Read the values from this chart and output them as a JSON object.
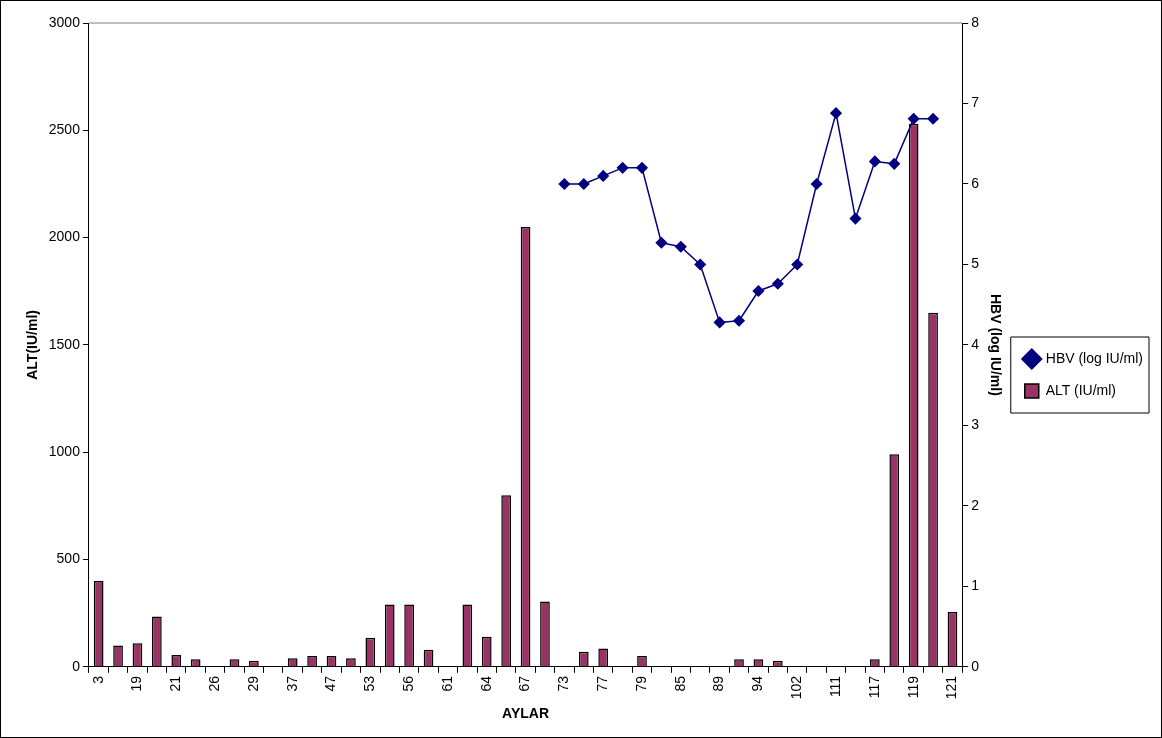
{
  "chart_data": {
    "type": "bar",
    "xlabel": "AYLAR",
    "ylabel": "ALT(IU/ml)",
    "y2label": "HBV (log IU/ml)",
    "categories": [
      "3",
      null,
      "19",
      null,
      "21",
      null,
      "26",
      null,
      "29",
      null,
      "37",
      null,
      "47",
      null,
      "53",
      null,
      "56",
      null,
      "61",
      null,
      "64",
      null,
      "67",
      null,
      "73",
      null,
      "77",
      null,
      "79",
      null,
      "85",
      null,
      "89",
      null,
      "94",
      null,
      "102",
      null,
      "111",
      null,
      "117",
      null,
      "119",
      null,
      "121"
    ],
    "series": [
      {
        "name": "ALT (IU/ml)",
        "color": "#993366",
        "values": [
          400,
          100,
          110,
          235,
          55,
          35,
          null,
          35,
          28,
          null,
          40,
          50,
          50,
          40,
          135,
          290,
          290,
          80,
          null,
          290,
          140,
          800,
          2050,
          305,
          null,
          70,
          85,
          null,
          50,
          null,
          null,
          null,
          null,
          35,
          35,
          28,
          null,
          null,
          null,
          null,
          35,
          990,
          2530,
          1650,
          255
        ]
      },
      {
        "name": "HBV (log IU/ml)",
        "type": "line",
        "axis": "y2",
        "color": "#000080",
        "marker": "diamond",
        "values": [
          null,
          null,
          null,
          null,
          null,
          null,
          null,
          null,
          null,
          null,
          null,
          null,
          null,
          null,
          null,
          null,
          null,
          null,
          null,
          null,
          null,
          null,
          null,
          null,
          6.0,
          6.0,
          6.1,
          6.2,
          6.2,
          5.27,
          5.22,
          5.0,
          4.28,
          4.3,
          4.67,
          4.76,
          5.0,
          6.0,
          6.88,
          5.57,
          6.28,
          6.25,
          6.81,
          6.81,
          null
        ]
      }
    ],
    "ylim": [
      0,
      3000
    ],
    "yticks": [
      0,
      500,
      1000,
      1500,
      2000,
      2500,
      3000
    ],
    "y2lim": [
      0,
      8
    ],
    "y2ticks": [
      0,
      1,
      2,
      3,
      4,
      5,
      6,
      7,
      8
    ],
    "legend": "right",
    "grid": false
  }
}
